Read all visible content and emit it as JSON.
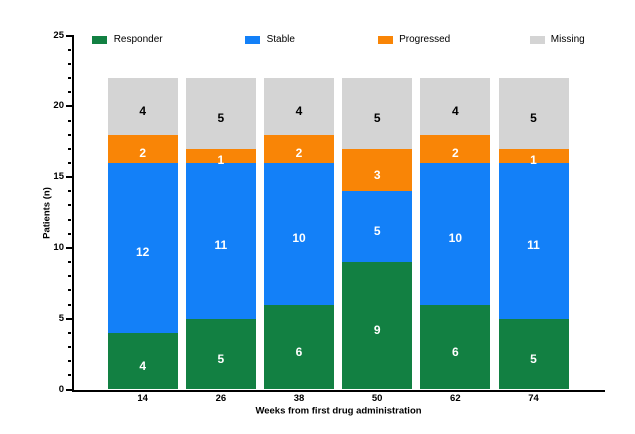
{
  "chart_data": {
    "type": "bar",
    "stacked": true,
    "xlabel": "Weeks from first drug administration",
    "ylabel": "Patients (n)",
    "categories": [
      "14",
      "26",
      "38",
      "50",
      "62",
      "74"
    ],
    "series": [
      {
        "name": "Responder",
        "color": "#128042",
        "label_color": "#ffffff",
        "values": [
          4,
          5,
          6,
          9,
          6,
          5
        ]
      },
      {
        "name": "Stable",
        "color": "#1380f8",
        "label_color": "#ffffff",
        "values": [
          12,
          11,
          10,
          5,
          10,
          11
        ]
      },
      {
        "name": "Progressed",
        "color": "#f98506",
        "label_color": "#ffffff",
        "values": [
          2,
          1,
          2,
          3,
          2,
          1
        ]
      },
      {
        "name": "Missing",
        "color": "#d4d4d4",
        "label_color": "#000000",
        "values": [
          4,
          5,
          4,
          5,
          4,
          5
        ]
      }
    ],
    "ylim": [
      0,
      25
    ],
    "yticks": [
      0,
      5,
      10,
      15,
      20,
      25
    ],
    "minor_tick_step": 1,
    "legend_position": "top",
    "grid": false,
    "axis_color": "#000000",
    "background_color": "#ffffff"
  }
}
